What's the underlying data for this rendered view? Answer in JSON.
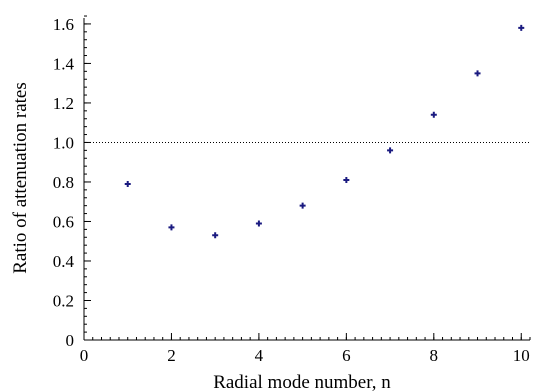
{
  "chart_data": {
    "type": "scatter",
    "title": "",
    "xlabel": "Radial mode number, n",
    "ylabel": "Ratio of attenuation rates",
    "xlim": [
      0,
      10.2
    ],
    "ylim": [
      0,
      1.63
    ],
    "xticks": [
      0,
      2,
      4,
      6,
      8,
      10
    ],
    "xtick_labels": [
      "0",
      "2",
      "4",
      "6",
      "8",
      "10"
    ],
    "yticks": [
      0,
      0.2,
      0.4,
      0.6,
      0.8,
      1.0,
      1.2,
      1.4,
      1.6
    ],
    "ytick_labels": [
      "0",
      "0.2",
      "0.4",
      "0.6",
      "0.8",
      "1.0",
      "1.2",
      "1.4",
      "1.6"
    ],
    "x_minor_step": 0.2,
    "y_minor_step": 0.04,
    "grid": false,
    "legend": "none",
    "reference_line": {
      "y": 1.0,
      "style": "dotted"
    },
    "series": [
      {
        "marker": "plus",
        "color": "#1a1a80",
        "points": [
          {
            "x": 1,
            "y": 0.79
          },
          {
            "x": 2,
            "y": 0.57
          },
          {
            "x": 3,
            "y": 0.53
          },
          {
            "x": 4,
            "y": 0.59
          },
          {
            "x": 5,
            "y": 0.68
          },
          {
            "x": 6,
            "y": 0.81
          },
          {
            "x": 7,
            "y": 0.96
          },
          {
            "x": 8,
            "y": 1.14
          },
          {
            "x": 9,
            "y": 1.35
          },
          {
            "x": 10,
            "y": 1.58
          }
        ]
      }
    ]
  }
}
